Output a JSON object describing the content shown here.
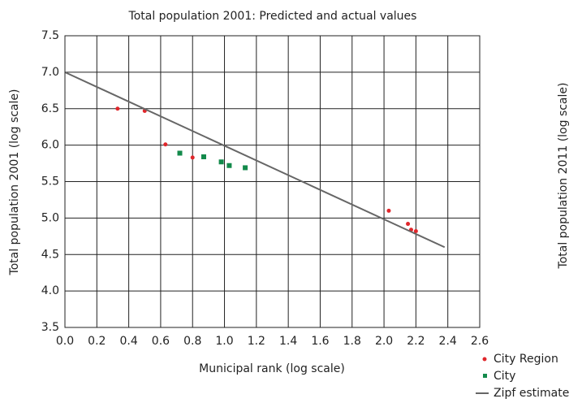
{
  "chart_data": {
    "type": "scatter",
    "title": "Total population 2001: Predicted and actual values",
    "x_label": "Municipal rank (log scale)",
    "y_label": "Total population 2001 (log scale)",
    "y2_label": "Total population 2011 (log scale)",
    "xlim": [
      0,
      2.6
    ],
    "xticks": [
      {
        "value": 0,
        "label": "0.0"
      },
      0.2,
      0.4,
      0.6,
      0.8,
      {
        "value": 1,
        "label": "1.0"
      },
      1.2,
      1.4,
      1.6,
      1.8,
      {
        "value": 2,
        "label": "2.0"
      },
      2.2,
      2.4,
      2.6
    ],
    "ylim": [
      3.5,
      7.5
    ],
    "yticks": [
      3.5,
      {
        "value": 4,
        "label": "4.0"
      },
      4.5,
      {
        "value": 5,
        "label": "5.0"
      },
      5.5,
      {
        "value": 6,
        "label": "6.0"
      },
      6.5,
      {
        "value": 7,
        "label": "7.0"
      },
      7.5
    ],
    "grid": true,
    "legend": "lower right",
    "series": [
      {
        "name": "City Region",
        "color": "#e0262b",
        "marker": "circle",
        "x": [
          0.33,
          0.5,
          0.63,
          0.8,
          2.03,
          2.15,
          2.17,
          2.2
        ],
        "values": [
          6.5,
          6.47,
          6.01,
          5.83,
          5.1,
          4.92,
          4.84,
          4.82
        ]
      },
      {
        "name": "City",
        "color": "#138a4b",
        "marker": "square",
        "x": [
          0.72,
          0.87,
          0.98,
          1.03,
          1.13
        ],
        "values": [
          5.89,
          5.84,
          5.77,
          5.72,
          5.69
        ]
      },
      {
        "name": "Zipf estimate",
        "color": "#666666",
        "marker": "line",
        "x": [
          0,
          2.38
        ],
        "values": [
          7.0,
          4.6
        ]
      }
    ]
  }
}
